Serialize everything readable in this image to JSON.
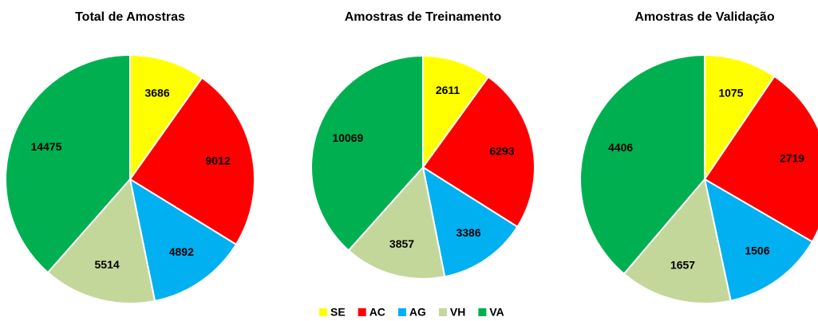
{
  "chart_data": [
    {
      "type": "pie",
      "title": "Total de Amostras",
      "categories": [
        "SE",
        "AC",
        "AG",
        "VH",
        "VA"
      ],
      "values": [
        3686,
        9012,
        4892,
        5514,
        14475
      ],
      "colors": [
        "#ffff00",
        "#ff0000",
        "#00b0f0",
        "#c4d79b",
        "#00b050"
      ]
    },
    {
      "type": "pie",
      "title": "Amostras de Treinamento",
      "categories": [
        "SE",
        "AC",
        "AG",
        "VH",
        "VA"
      ],
      "values": [
        2611,
        6293,
        3386,
        3857,
        10069
      ],
      "colors": [
        "#ffff00",
        "#ff0000",
        "#00b0f0",
        "#c4d79b",
        "#00b050"
      ]
    },
    {
      "type": "pie",
      "title": "Amostras de Validação",
      "categories": [
        "SE",
        "AC",
        "AG",
        "VH",
        "VA"
      ],
      "values": [
        1075,
        2719,
        1506,
        1657,
        4406
      ],
      "colors": [
        "#ffff00",
        "#ff0000",
        "#00b0f0",
        "#c4d79b",
        "#00b050"
      ]
    }
  ]
}
